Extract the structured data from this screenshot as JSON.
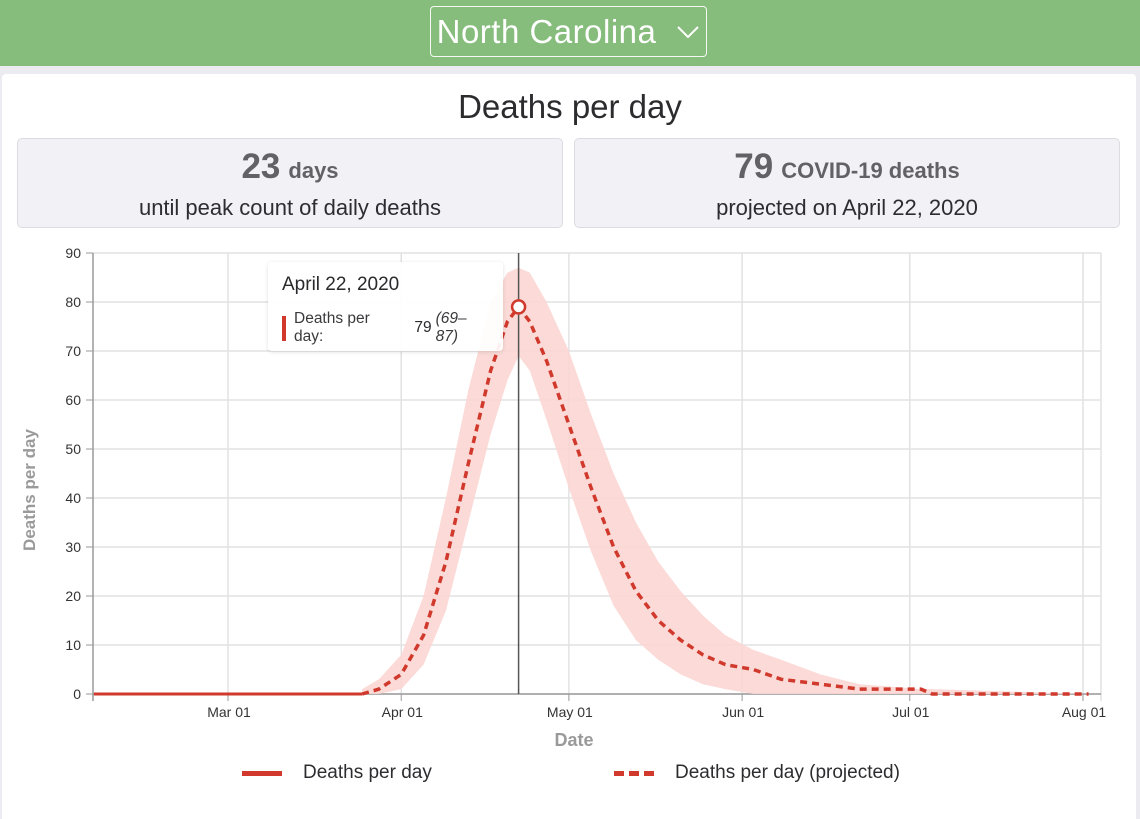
{
  "header": {
    "state_selector": {
      "value": "North Carolina",
      "icon": "chevron-down-icon"
    },
    "background_color": "#86bd7c"
  },
  "page": {
    "title": "Deaths per day"
  },
  "stats": {
    "peak_days": {
      "number": "23",
      "unit": "days",
      "caption": "until peak count of daily deaths"
    },
    "peak_deaths": {
      "number": "79",
      "unit": "COVID-19 deaths",
      "caption": "projected on April 22, 2020"
    }
  },
  "tooltip": {
    "date": "April 22, 2020",
    "series_label": "Deaths per day:",
    "value": "79",
    "range": "(69–87)"
  },
  "legend": {
    "items": [
      {
        "label": "Deaths per day",
        "style": "solid",
        "color": "#d0392c"
      },
      {
        "label": "Deaths per day (projected)",
        "style": "dashed",
        "color": "#d0392c"
      }
    ]
  },
  "colors": {
    "line": "#d0392c",
    "band": "#fbd6d3",
    "grid": "#e2e2e2",
    "axis": "#9a9a9a"
  },
  "chart_data": {
    "type": "line",
    "title": "Deaths per day",
    "xlabel": "Date",
    "ylabel": "Deaths per day",
    "ylim": [
      0,
      90
    ],
    "yticks": [
      0,
      10,
      20,
      30,
      40,
      50,
      60,
      70,
      80,
      90
    ],
    "xticks": [
      "Mar 01",
      "Apr 01",
      "May 01",
      "Jun 01",
      "Jul 01",
      "Aug 01"
    ],
    "grid": true,
    "legend_position": "bottom",
    "highlight": {
      "date": "2020-04-22",
      "value": 79,
      "lower": 69,
      "upper": 87
    },
    "series": [
      {
        "name": "Deaths per day",
        "style": "solid",
        "x": [
          "2020-02-06",
          "2020-03-01",
          "2020-03-25"
        ],
        "values": [
          0,
          0,
          0
        ]
      },
      {
        "name": "Deaths per day (projected)",
        "style": "dashed",
        "x": [
          "2020-03-25",
          "2020-03-28",
          "2020-04-01",
          "2020-04-05",
          "2020-04-09",
          "2020-04-13",
          "2020-04-17",
          "2020-04-20",
          "2020-04-22",
          "2020-04-24",
          "2020-04-27",
          "2020-05-01",
          "2020-05-05",
          "2020-05-09",
          "2020-05-13",
          "2020-05-17",
          "2020-05-21",
          "2020-05-25",
          "2020-05-29",
          "2020-06-03",
          "2020-06-08",
          "2020-06-15",
          "2020-06-22",
          "2020-07-03",
          "2020-07-05",
          "2020-08-02"
        ],
        "values": [
          0,
          1,
          4,
          12,
          27,
          47,
          66,
          76,
          79,
          76,
          68,
          55,
          42,
          30,
          21,
          15,
          11,
          8,
          6,
          5,
          3,
          2,
          1,
          1,
          0,
          0
        ],
        "lower": [
          0,
          0,
          1,
          6,
          17,
          35,
          53,
          64,
          69,
          66,
          56,
          42,
          29,
          18,
          11,
          7,
          4,
          2,
          1,
          0,
          0,
          0,
          0,
          0,
          0,
          0
        ],
        "upper": [
          1,
          3,
          8,
          20,
          40,
          62,
          80,
          86,
          87,
          86,
          80,
          70,
          57,
          45,
          35,
          27,
          21,
          16,
          12,
          9,
          7,
          4,
          2,
          1,
          1,
          0
        ]
      }
    ]
  }
}
